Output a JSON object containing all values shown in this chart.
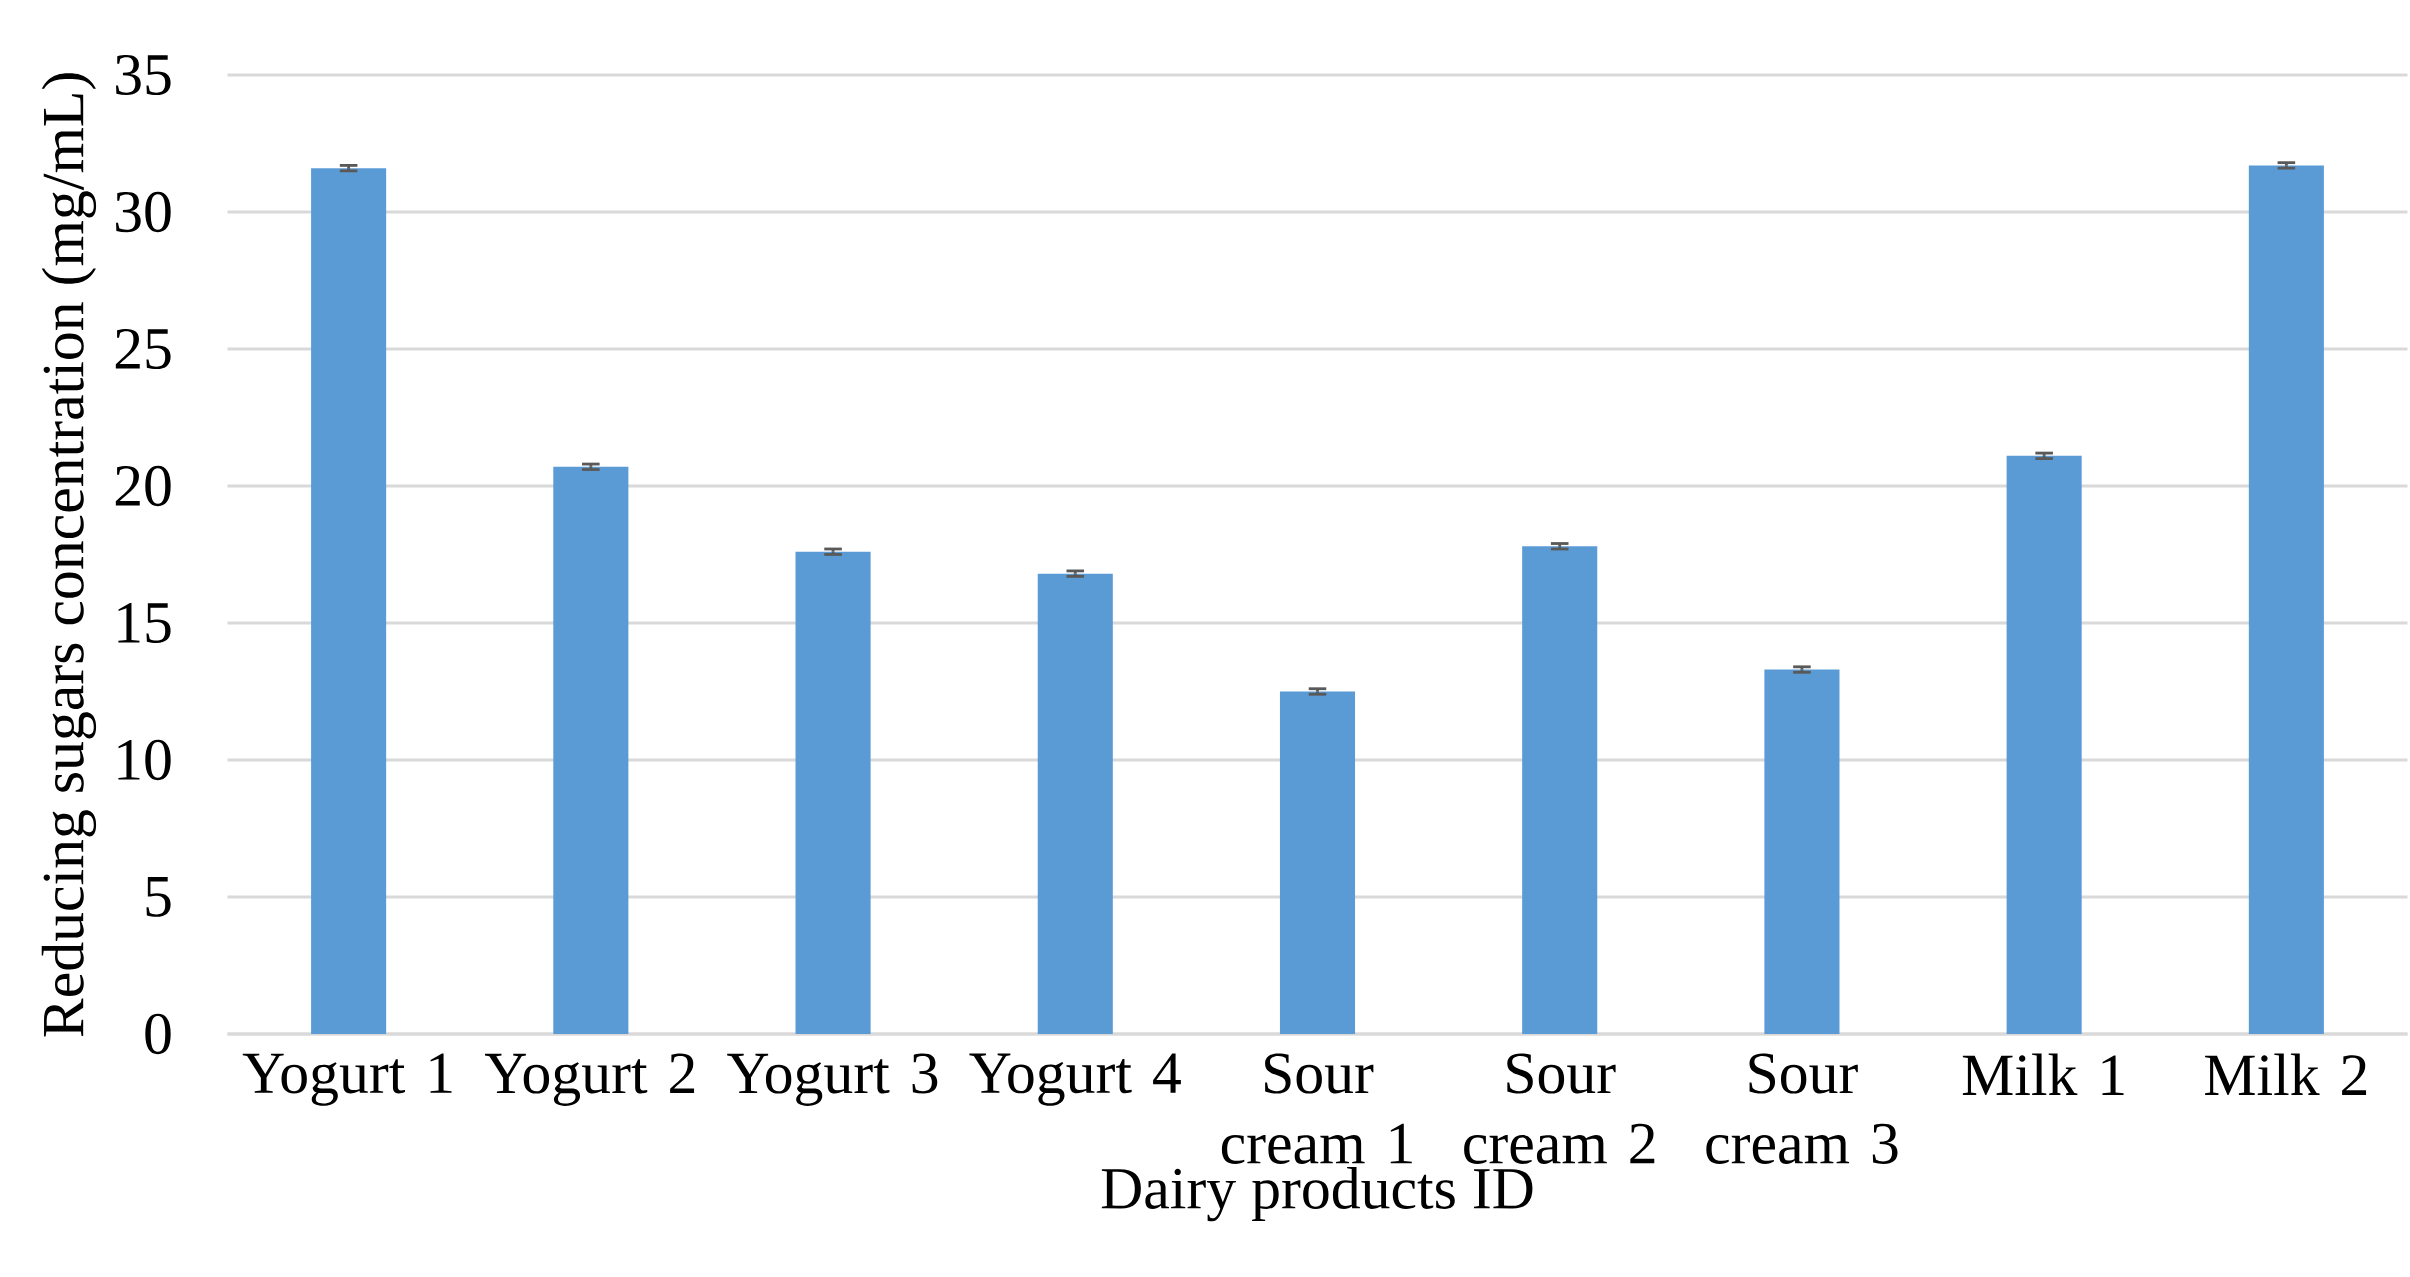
{
  "chart_data": {
    "type": "bar",
    "xlabel": "Dairy products ID",
    "ylabel": "Reducing sugars concentration (mg/mL)",
    "categories": [
      "Yogurt 1",
      "Yogurt 2",
      "Yogurt 3",
      "Yogurt 4",
      "Sour cream 1",
      "Sour cream 2",
      "Sour cream 3",
      "Milk 1",
      "Milk 2"
    ],
    "values": [
      31.6,
      20.7,
      17.6,
      16.8,
      12.5,
      17.8,
      13.3,
      21.1,
      31.7
    ],
    "errors": [
      0.1,
      0.1,
      0.1,
      0.1,
      0.1,
      0.1,
      0.1,
      0.1,
      0.1
    ],
    "color": "#5b9bd5",
    "ylim": [
      0,
      35
    ],
    "yticks": [
      0,
      5,
      10,
      15,
      20,
      25,
      30,
      35
    ],
    "grid": "y"
  }
}
